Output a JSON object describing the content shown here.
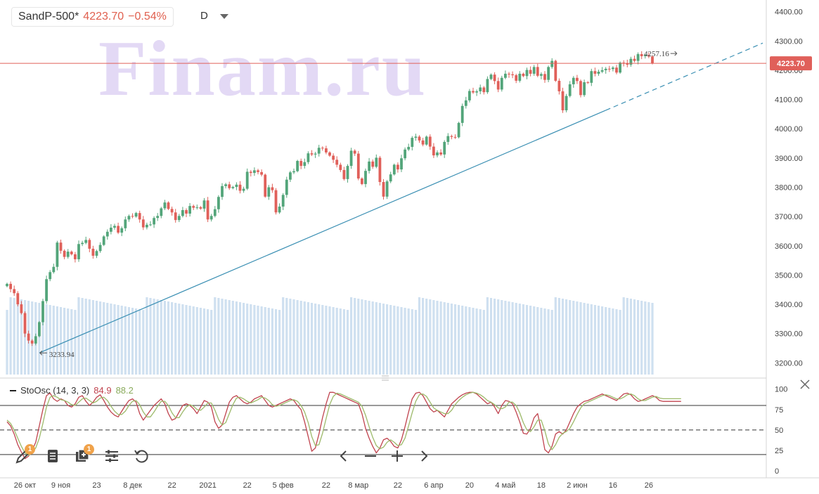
{
  "header": {
    "symbol": "SandP-500*",
    "price": "4223.70",
    "change": "−0.54%",
    "interval": "D",
    "watermark": "Finam.ru"
  },
  "price_tag": "4223.70",
  "annotations": {
    "high_label": "4257.16",
    "low_label": "3233.94"
  },
  "oscillator": {
    "name": "StoOsc (14, 3, 3)",
    "k_value": "84.9",
    "d_value": "88.2"
  },
  "colors": {
    "up": "#53a57a",
    "down": "#e0605a",
    "trend": "#3a8fb3",
    "level": "#e0605a",
    "volume": "#cfe0f0",
    "osc_k": "#c0434e",
    "osc_d": "#9cba6a"
  },
  "toolbar": {
    "draw_badge": "1",
    "layers_badge": "1"
  },
  "chart_data": [
    {
      "type": "candlestick",
      "price_axis": {
        "range": [
          3160,
          4440
        ],
        "ticks": [
          "4400.00",
          "4300.00",
          "4200.00",
          "4100.00",
          "4000.00",
          "3900.00",
          "3800.00",
          "3700.00",
          "3600.00",
          "3500.00",
          "3400.00",
          "3300.00",
          "3200.00"
        ]
      },
      "x_ticks": [
        "26 окт",
        "9 ноя",
        "23",
        "8 дек",
        "22",
        "2021",
        "22",
        "5 фев",
        "22",
        "8 мар",
        "22",
        "6 апр",
        "20",
        "4 май",
        "18",
        "2 июн",
        "16",
        "26"
      ],
      "levels": [
        4223.7
      ],
      "close": [
        3470,
        3452,
        3438,
        3400,
        3370,
        3300,
        3276,
        3266,
        3291,
        3339,
        3411,
        3486,
        3510,
        3528,
        3611,
        3583,
        3562,
        3580,
        3571,
        3554,
        3606,
        3610,
        3620,
        3590,
        3566,
        3582,
        3603,
        3632,
        3648,
        3662,
        3668,
        3645,
        3660,
        3690,
        3702,
        3700,
        3712,
        3690,
        3663,
        3672,
        3673,
        3695,
        3702,
        3728,
        3748,
        3726,
        3714,
        3688,
        3702,
        3722,
        3710,
        3736,
        3730,
        3732,
        3727,
        3755,
        3690,
        3702,
        3725,
        3767,
        3804,
        3810,
        3797,
        3801,
        3809,
        3788,
        3795,
        3853,
        3849,
        3858,
        3852,
        3843,
        3768,
        3800,
        3790,
        3714,
        3734,
        3774,
        3826,
        3851,
        3855,
        3890,
        3873,
        3886,
        3916,
        3912,
        3915,
        3935,
        3933,
        3919,
        3908,
        3894,
        3877,
        3859,
        3828,
        3873,
        3925,
        3915,
        3830,
        3811,
        3856,
        3888,
        3870,
        3901,
        3818,
        3768,
        3820,
        3844,
        3877,
        3861,
        3899,
        3929,
        3938,
        3969,
        3973,
        3960,
        3946,
        3973,
        3939,
        3909,
        3919,
        3912,
        3955,
        3975,
        3972,
        3971,
        4020,
        4078,
        4097,
        4129,
        4124,
        4128,
        4141,
        4125,
        4170,
        4185,
        4163,
        4134,
        4174,
        4188,
        4186,
        4183,
        4164,
        4188,
        4180,
        4201,
        4188,
        4211,
        4181,
        4187,
        4167,
        4211,
        4232,
        4164,
        4128,
        4063,
        4112,
        4152,
        4174,
        4163,
        4115,
        4159,
        4157,
        4197,
        4188,
        4195,
        4200,
        4205,
        4204,
        4209,
        4192,
        4226,
        4224,
        4219,
        4239,
        4232,
        4255,
        4248,
        4251,
        4247,
        4224
      ],
      "high_marker": 4257.16,
      "low_marker": 3233.94,
      "volume": {
        "y_axis": "none"
      }
    },
    {
      "type": "line",
      "title": "StoOsc (14, 3, 3)",
      "y_range": [
        -5,
        110
      ],
      "y_ticks": [
        100,
        75,
        50,
        25,
        0
      ],
      "levels": [
        80,
        50,
        20
      ],
      "series": [
        {
          "name": "%K",
          "values": [
            60,
            55,
            45,
            32,
            23,
            15,
            18,
            25,
            35,
            55,
            75,
            92,
            95,
            88,
            85,
            88,
            86,
            80,
            78,
            82,
            90,
            92,
            85,
            80,
            84,
            90,
            93,
            86,
            78,
            72,
            68,
            66,
            73,
            80,
            86,
            88,
            84,
            70,
            62,
            68,
            74,
            80,
            84,
            88,
            82,
            70,
            62,
            64,
            72,
            80,
            82,
            80,
            76,
            70,
            78,
            86,
            84,
            78,
            60,
            52,
            56,
            70,
            84,
            90,
            92,
            88,
            84,
            82,
            84,
            88,
            90,
            92,
            86,
            80,
            78,
            80,
            82,
            84,
            86,
            88,
            86,
            80,
            75,
            60,
            42,
            24,
            28,
            45,
            65,
            82,
            96,
            96,
            94,
            92,
            90,
            88,
            86,
            84,
            82,
            70,
            52,
            40,
            30,
            22,
            28,
            38,
            40,
            36,
            30,
            28,
            38,
            54,
            72,
            88,
            95,
            96,
            92,
            84,
            76,
            72,
            74,
            70,
            66,
            74,
            82,
            86,
            90,
            93,
            95,
            96,
            96,
            94,
            90,
            86,
            82,
            84,
            78,
            70,
            80,
            86,
            85,
            82,
            72,
            60,
            46,
            45,
            52,
            65,
            70,
            50,
            26,
            22,
            30,
            45,
            48,
            45,
            50,
            60,
            70,
            78,
            82,
            85,
            86,
            88,
            90,
            92,
            94,
            92,
            90,
            88,
            86,
            90,
            94,
            95,
            93,
            88,
            84.9,
            86,
            88,
            90,
            92,
            90,
            86,
            84.9,
            84.9,
            84.9,
            84.9,
            84.9,
            84.9
          ]
        },
        {
          "name": "%D",
          "values": [
            62,
            58,
            50,
            40,
            30,
            22,
            19,
            22,
            28,
            40,
            58,
            78,
            90,
            92,
            90,
            87,
            86,
            84,
            81,
            80,
            84,
            88,
            89,
            86,
            83,
            85,
            89,
            90,
            86,
            79,
            73,
            69,
            69,
            73,
            80,
            85,
            86,
            81,
            72,
            66,
            66,
            72,
            79,
            85,
            85,
            80,
            71,
            65,
            65,
            72,
            78,
            81,
            79,
            75,
            74,
            78,
            83,
            83,
            74,
            63,
            56,
            59,
            70,
            81,
            89,
            90,
            88,
            85,
            83,
            85,
            87,
            90,
            89,
            86,
            81,
            79,
            80,
            82,
            84,
            86,
            87,
            85,
            80,
            72,
            59,
            42,
            31,
            32,
            46,
            64,
            81,
            91,
            95,
            94,
            92,
            90,
            88,
            86,
            84,
            79,
            68,
            54,
            41,
            31,
            27,
            29,
            35,
            38,
            35,
            31,
            32,
            40,
            55,
            71,
            85,
            93,
            94,
            91,
            84,
            77,
            74,
            72,
            70,
            70,
            74,
            81,
            86,
            90,
            93,
            95,
            96,
            95,
            93,
            90,
            86,
            84,
            81,
            77,
            76,
            78,
            84,
            84,
            80,
            71,
            59,
            50,
            48,
            54,
            62,
            62,
            49,
            33,
            26,
            32,
            41,
            46,
            48,
            52,
            60,
            69,
            77,
            82,
            84,
            86,
            88,
            90,
            92,
            93,
            92,
            90,
            88,
            88,
            90,
            93,
            94,
            92,
            88,
            86,
            86,
            88,
            90,
            91,
            89,
            88.2,
            88.2,
            88.2,
            88.2,
            88.2,
            88.2
          ]
        }
      ]
    }
  ]
}
